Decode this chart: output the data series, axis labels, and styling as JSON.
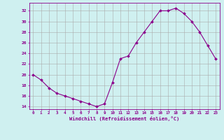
{
  "x": [
    0,
    1,
    2,
    3,
    4,
    5,
    6,
    7,
    8,
    9,
    10,
    11,
    12,
    13,
    14,
    15,
    16,
    17,
    18,
    19,
    20,
    21,
    22,
    23
  ],
  "y": [
    20,
    19,
    17.5,
    16.5,
    16,
    15.5,
    15,
    14.5,
    14,
    14.5,
    18.5,
    23,
    23.5,
    26,
    28,
    30,
    32,
    32,
    32.5,
    31.5,
    30,
    28,
    25.5,
    23
  ],
  "line_color": "#8b008b",
  "marker": "D",
  "marker_size": 2.0,
  "bg_color": "#cff0f0",
  "grid_color": "#aaaaaa",
  "xlabel": "Windchill (Refroidissement éolien,°C)",
  "ylabel_ticks": [
    14,
    16,
    18,
    20,
    22,
    24,
    26,
    28,
    30,
    32
  ],
  "xtick_labels": [
    "0",
    "1",
    "2",
    "3",
    "4",
    "5",
    "6",
    "7",
    "8",
    "9",
    "10",
    "11",
    "12",
    "13",
    "14",
    "15",
    "16",
    "17",
    "18",
    "19",
    "20",
    "21",
    "22",
    "23"
  ],
  "ylim": [
    13.5,
    33.5
  ],
  "xlim": [
    -0.5,
    23.5
  ],
  "label_color": "#8b008b",
  "tick_color": "#8b008b",
  "spine_color": "#8b008b"
}
